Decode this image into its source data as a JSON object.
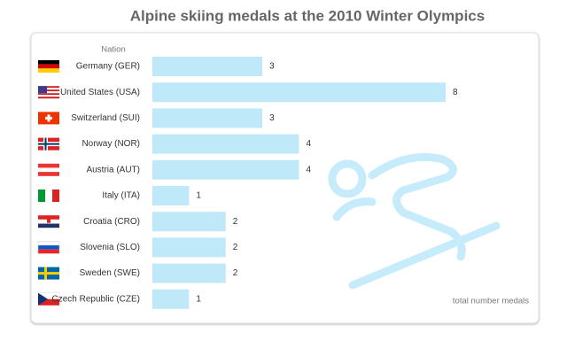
{
  "chart_data": {
    "type": "bar",
    "orientation": "horizontal",
    "title": "Alpine skiing medals at the 2010 Winter Olympics",
    "y_label": "Nation",
    "x_label": "total number medals",
    "categories": [
      "Germany (GER)",
      "United States (USA)",
      "Switzerland (SUI)",
      "Norway (NOR)",
      "Austria (AUT)",
      "Italy (ITA)",
      "Croatia (CRO)",
      "Slovenia (SLO)",
      "Sweden (SWE)",
      "Czech Republic (CZE)"
    ],
    "values": [
      3,
      8,
      3,
      4,
      4,
      1,
      2,
      2,
      2,
      1
    ],
    "color": "#bfe8f8",
    "xlim": [
      0,
      8
    ]
  }
}
